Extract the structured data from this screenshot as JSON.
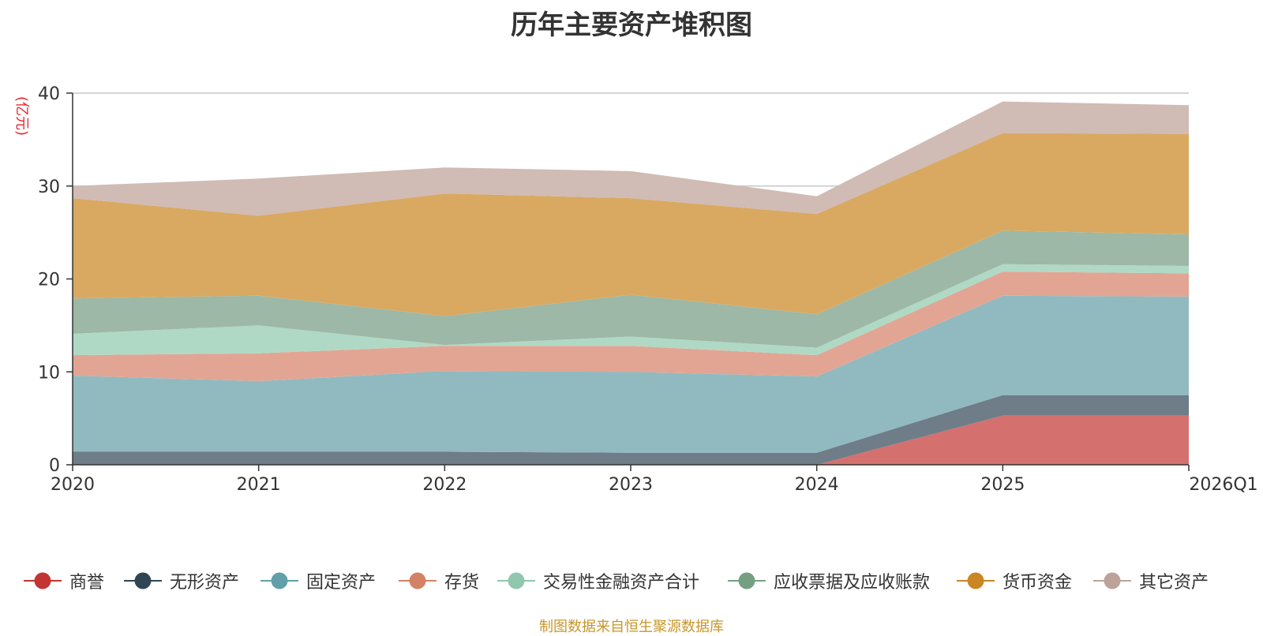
{
  "chart_data": {
    "type": "area",
    "stacked": true,
    "title": "历年主要资产堆积图",
    "ylabel": "(亿元)",
    "xlabel": "",
    "categories": [
      "2020",
      "2021",
      "2022",
      "2023",
      "2024",
      "2025",
      "2026Q1"
    ],
    "ylim": [
      0,
      40
    ],
    "yticks": [
      0,
      10,
      20,
      30,
      40
    ],
    "grid": true,
    "legend_position": "bottom",
    "series": [
      {
        "name": "商誉",
        "color": "#c23531",
        "fill": "#d4716e",
        "values": [
          0,
          0,
          0,
          0,
          0,
          5.3,
          5.3
        ]
      },
      {
        "name": "无形资产",
        "color": "#2f4554",
        "fill": "#6e7d88",
        "values": [
          1.4,
          1.4,
          1.4,
          1.3,
          1.3,
          2.2,
          2.2
        ]
      },
      {
        "name": "固定资产",
        "color": "#61a0a8",
        "fill": "#91bac0",
        "values": [
          8.2,
          7.6,
          8.7,
          8.7,
          8.2,
          10.7,
          10.6
        ]
      },
      {
        "name": "存货",
        "color": "#d48265",
        "fill": "#e2a594",
        "values": [
          2.2,
          3.0,
          2.7,
          2.8,
          2.3,
          2.6,
          2.5
        ]
      },
      {
        "name": "交易性金融资产合计",
        "color": "#91c7ae",
        "fill": "#b0d9c5",
        "values": [
          2.3,
          3.0,
          0.1,
          1.0,
          0.8,
          0.8,
          0.8
        ]
      },
      {
        "name": "应收票据及应收账款",
        "color": "#749f83",
        "fill": "#9db8a6",
        "values": [
          3.8,
          3.2,
          3.1,
          4.5,
          3.6,
          3.6,
          3.4
        ]
      },
      {
        "name": "货币资金",
        "color": "#ca8622",
        "fill": "#d9a962",
        "values": [
          10.8,
          8.6,
          13.2,
          10.4,
          10.8,
          10.5,
          10.8
        ]
      },
      {
        "name": "其它资产",
        "color": "#bda29a",
        "fill": "#d0bbb5",
        "values": [
          1.3,
          4.0,
          2.8,
          2.9,
          1.9,
          3.4,
          3.1
        ]
      }
    ]
  },
  "footer": {
    "source": "制图数据来自恒生聚源数据库"
  }
}
